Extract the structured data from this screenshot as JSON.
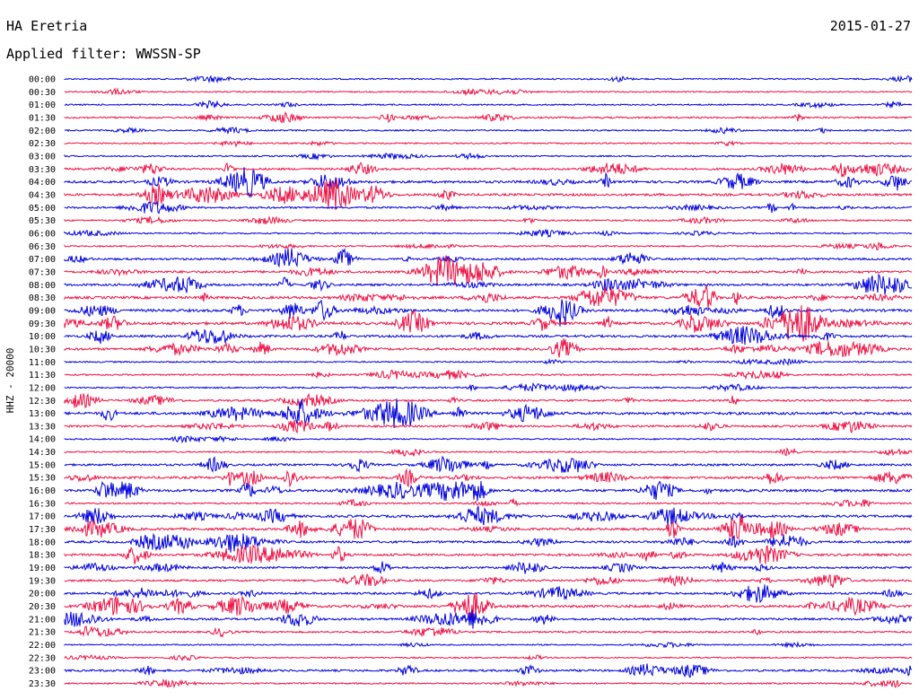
{
  "header": {
    "station": "HA Eretria",
    "date": "2015-01-27",
    "filter_label": "Applied filter: WWSSN-SP"
  },
  "chart_data": {
    "type": "line",
    "title": "HA Eretria",
    "subtitle": "Applied filter: WWSSN-SP",
    "ylabel": "HHZ - 20000",
    "xlabel": "",
    "grid": false,
    "legend": "none",
    "colors": {
      "even_rows": "#0000dd",
      "odd_rows": "#ee1144"
    },
    "rows": [
      {
        "time": "00:00",
        "activity": 0.1
      },
      {
        "time": "00:30",
        "activity": 0.08
      },
      {
        "time": "01:00",
        "activity": 0.12
      },
      {
        "time": "01:30",
        "activity": 0.25
      },
      {
        "time": "02:00",
        "activity": 0.15
      },
      {
        "time": "02:30",
        "activity": 0.1
      },
      {
        "time": "03:00",
        "activity": 0.08
      },
      {
        "time": "03:30",
        "activity": 0.4
      },
      {
        "time": "04:00",
        "activity": 0.6
      },
      {
        "time": "04:30",
        "activity": 0.55
      },
      {
        "time": "05:00",
        "activity": 0.35
      },
      {
        "time": "05:30",
        "activity": 0.2
      },
      {
        "time": "06:00",
        "activity": 0.12
      },
      {
        "time": "06:30",
        "activity": 0.15
      },
      {
        "time": "07:00",
        "activity": 0.4
      },
      {
        "time": "07:30",
        "activity": 0.55
      },
      {
        "time": "08:00",
        "activity": 0.5
      },
      {
        "time": "08:30",
        "activity": 0.65
      },
      {
        "time": "09:00",
        "activity": 0.7
      },
      {
        "time": "09:30",
        "activity": 0.75
      },
      {
        "time": "10:00",
        "activity": 0.5
      },
      {
        "time": "10:30",
        "activity": 0.55
      },
      {
        "time": "11:00",
        "activity": 0.12
      },
      {
        "time": "11:30",
        "activity": 0.18
      },
      {
        "time": "12:00",
        "activity": 0.15
      },
      {
        "time": "12:30",
        "activity": 0.35
      },
      {
        "time": "13:00",
        "activity": 0.7
      },
      {
        "time": "13:30",
        "activity": 0.35
      },
      {
        "time": "14:00",
        "activity": 0.08
      },
      {
        "time": "14:30",
        "activity": 0.15
      },
      {
        "time": "15:00",
        "activity": 0.4
      },
      {
        "time": "15:30",
        "activity": 0.55
      },
      {
        "time": "16:00",
        "activity": 0.65
      },
      {
        "time": "16:30",
        "activity": 0.2
      },
      {
        "time": "17:00",
        "activity": 0.55
      },
      {
        "time": "17:30",
        "activity": 0.6
      },
      {
        "time": "18:00",
        "activity": 0.5
      },
      {
        "time": "18:30",
        "activity": 0.55
      },
      {
        "time": "19:00",
        "activity": 0.35
      },
      {
        "time": "19:30",
        "activity": 0.4
      },
      {
        "time": "20:00",
        "activity": 0.45
      },
      {
        "time": "20:30",
        "activity": 0.6
      },
      {
        "time": "21:00",
        "activity": 0.45
      },
      {
        "time": "21:30",
        "activity": 0.25
      },
      {
        "time": "22:00",
        "activity": 0.05
      },
      {
        "time": "22:30",
        "activity": 0.08
      },
      {
        "time": "23:00",
        "activity": 0.4
      },
      {
        "time": "23:30",
        "activity": 0.15
      }
    ]
  }
}
